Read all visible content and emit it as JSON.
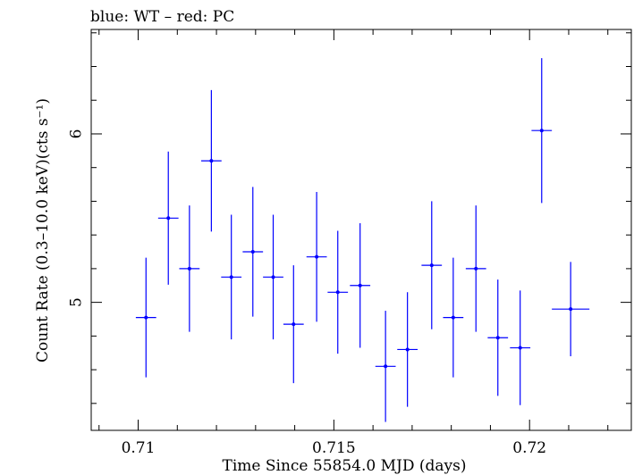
{
  "chart_data": {
    "type": "scatter",
    "title": "blue: WT – red: PC",
    "xlabel": "Time Since 55854.0 MJD (days)",
    "ylabel": "Count Rate (0.3–10.0 keV)(cts s⁻¹)",
    "xlim": [
      0.7088,
      0.7226
    ],
    "ylim": [
      4.24,
      6.62
    ],
    "x_ticks": [
      {
        "value": 0.71,
        "label": "0.71"
      },
      {
        "value": 0.715,
        "label": "0.715"
      },
      {
        "value": 0.72,
        "label": "0.72"
      }
    ],
    "y_ticks": [
      {
        "value": 5,
        "label": "5"
      },
      {
        "value": 6,
        "label": "6"
      }
    ],
    "grid": false,
    "colors": {
      "WT": "#0000ff",
      "PC": "#ff0000"
    },
    "series": [
      {
        "name": "WT",
        "color": "#0000ff",
        "points": [
          {
            "x": 0.7102,
            "xerr": 0.00026,
            "y": 4.91,
            "yerr": 0.355
          },
          {
            "x": 0.71077,
            "xerr": 0.00026,
            "y": 5.5,
            "yerr": 0.395
          },
          {
            "x": 0.71131,
            "xerr": 0.00026,
            "y": 5.2,
            "yerr": 0.375
          },
          {
            "x": 0.71187,
            "xerr": 0.00026,
            "y": 5.84,
            "yerr": 0.42
          },
          {
            "x": 0.71238,
            "xerr": 0.00026,
            "y": 5.15,
            "yerr": 0.37
          },
          {
            "x": 0.71293,
            "xerr": 0.00026,
            "y": 5.3,
            "yerr": 0.385
          },
          {
            "x": 0.71345,
            "xerr": 0.00026,
            "y": 5.15,
            "yerr": 0.37
          },
          {
            "x": 0.71397,
            "xerr": 0.00026,
            "y": 4.87,
            "yerr": 0.35
          },
          {
            "x": 0.71456,
            "xerr": 0.00026,
            "y": 5.27,
            "yerr": 0.385
          },
          {
            "x": 0.7151,
            "xerr": 0.00026,
            "y": 5.06,
            "yerr": 0.365
          },
          {
            "x": 0.71567,
            "xerr": 0.00026,
            "y": 5.1,
            "yerr": 0.37
          },
          {
            "x": 0.71632,
            "xerr": 0.00026,
            "y": 4.62,
            "yerr": 0.33
          },
          {
            "x": 0.71688,
            "xerr": 0.00026,
            "y": 4.72,
            "yerr": 0.34
          },
          {
            "x": 0.7175,
            "xerr": 0.00026,
            "y": 5.22,
            "yerr": 0.38
          },
          {
            "x": 0.71805,
            "xerr": 0.00026,
            "y": 4.91,
            "yerr": 0.355
          },
          {
            "x": 0.71863,
            "xerr": 0.00026,
            "y": 5.2,
            "yerr": 0.375
          },
          {
            "x": 0.71919,
            "xerr": 0.00026,
            "y": 4.79,
            "yerr": 0.345
          },
          {
            "x": 0.71976,
            "xerr": 0.00026,
            "y": 4.73,
            "yerr": 0.34
          },
          {
            "x": 0.72031,
            "xerr": 0.00026,
            "y": 6.02,
            "yerr": 0.43
          },
          {
            "x": 0.72105,
            "xerr": 0.00048,
            "y": 4.96,
            "yerr": 0.28
          }
        ]
      }
    ]
  }
}
